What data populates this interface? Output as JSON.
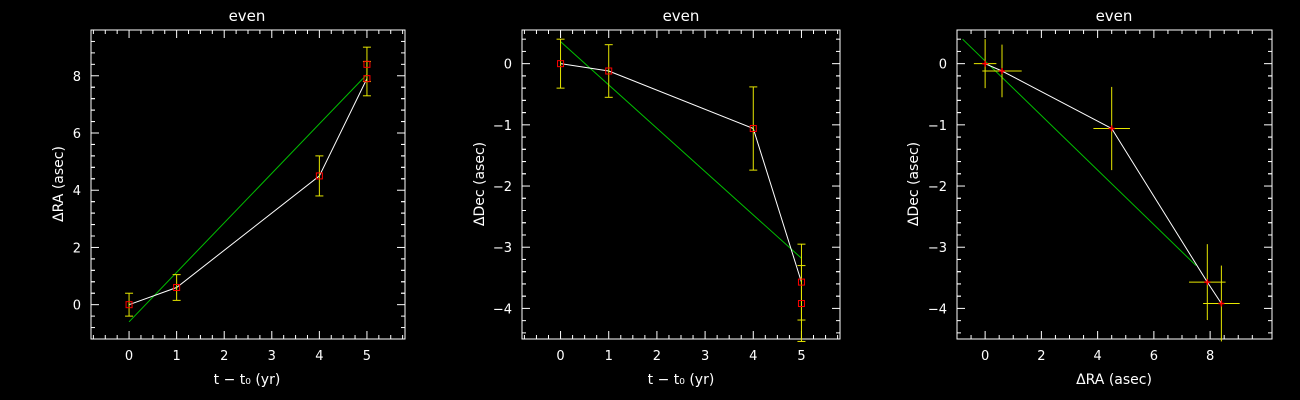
{
  "colors": {
    "background": "#000000",
    "axes": "#ffffff",
    "data_line": "#ffffff",
    "fit_line": "#00c000",
    "error_bar": "#e8e800",
    "marker": "#ff0000"
  },
  "chart_data": [
    {
      "type": "scatter",
      "title": "even",
      "xlabel": "t − t₀ (yr)",
      "ylabel": "ΔRA (asec)",
      "xlim": [
        -0.8,
        5.8
      ],
      "ylim": [
        -1.2,
        9.6
      ],
      "xticks": [
        0,
        1,
        2,
        3,
        4,
        5
      ],
      "yticks": [
        0,
        2,
        4,
        6,
        8
      ],
      "xticklabels": [
        "0",
        "1",
        "2",
        "3",
        "4",
        "5"
      ],
      "yticklabels": [
        "0",
        "2",
        "4",
        "6",
        "8"
      ],
      "points": [
        {
          "x": 0,
          "y": 0.0,
          "yerr": 0.4,
          "xerr": 0
        },
        {
          "x": 1,
          "y": 0.6,
          "yerr": 0.45,
          "xerr": 0
        },
        {
          "x": 4,
          "y": 4.5,
          "yerr": 0.7,
          "xerr": 0
        },
        {
          "x": 5,
          "y": 8.4,
          "yerr": 0.6,
          "xerr": 0
        },
        {
          "x": 5,
          "y": 7.9,
          "yerr": 0.6,
          "xerr": 0
        }
      ],
      "connect_order": [
        0,
        1,
        2,
        4
      ],
      "fit_line": [
        [
          0,
          -0.6
        ],
        [
          5,
          8.05
        ]
      ],
      "point_marker": "square"
    },
    {
      "type": "scatter",
      "title": "even",
      "xlabel": "t − t₀ (yr)",
      "ylabel": "ΔDec (asec)",
      "xlim": [
        -0.8,
        5.8
      ],
      "ylim": [
        -4.5,
        0.55
      ],
      "xticks": [
        0,
        1,
        2,
        3,
        4,
        5
      ],
      "yticks": [
        0,
        -1,
        -2,
        -3,
        -4
      ],
      "xticklabels": [
        "0",
        "1",
        "2",
        "3",
        "4",
        "5"
      ],
      "yticklabels": [
        "0",
        "−1",
        "−2",
        "−3",
        "−4"
      ],
      "points": [
        {
          "x": 0,
          "y": 0.0,
          "yerr": 0.4,
          "xerr": 0
        },
        {
          "x": 1,
          "y": -0.12,
          "yerr": 0.43,
          "xerr": 0
        },
        {
          "x": 4,
          "y": -1.06,
          "yerr": 0.68,
          "xerr": 0
        },
        {
          "x": 5,
          "y": -3.57,
          "yerr": 0.62,
          "xerr": 0
        },
        {
          "x": 5,
          "y": -3.92,
          "yerr": 0.62,
          "xerr": 0
        }
      ],
      "connect_order": [
        0,
        1,
        2,
        3
      ],
      "fit_line": [
        [
          0,
          0.36
        ],
        [
          5,
          -3.18
        ]
      ],
      "point_marker": "square"
    },
    {
      "type": "scatter",
      "title": "even",
      "xlabel": "ΔRA (asec)",
      "ylabel": "ΔDec (asec)",
      "xlim": [
        -1.0,
        10.2
      ],
      "ylim": [
        -4.5,
        0.55
      ],
      "xticks": [
        0,
        2,
        4,
        6,
        8
      ],
      "yticks": [
        0,
        -1,
        -2,
        -3,
        -4
      ],
      "xticklabels": [
        "0",
        "2",
        "4",
        "6",
        "8"
      ],
      "yticklabels": [
        "0",
        "−1",
        "−2",
        "−3",
        "−4"
      ],
      "points": [
        {
          "x": 0.0,
          "y": 0.0,
          "xerr": 0.4,
          "yerr": 0.4
        },
        {
          "x": 0.6,
          "y": -0.12,
          "xerr": 0.7,
          "yerr": 0.43
        },
        {
          "x": 4.5,
          "y": -1.06,
          "xerr": 0.65,
          "yerr": 0.68
        },
        {
          "x": 7.9,
          "y": -3.57,
          "xerr": 0.65,
          "yerr": 0.62
        },
        {
          "x": 8.4,
          "y": -3.92,
          "xerr": 0.65,
          "yerr": 0.62
        }
      ],
      "connect_order": [
        0,
        1,
        2,
        3,
        4
      ],
      "fit_line": [
        [
          -0.8,
          0.4
        ],
        [
          7.5,
          -3.3
        ]
      ],
      "point_marker": "plus"
    }
  ]
}
